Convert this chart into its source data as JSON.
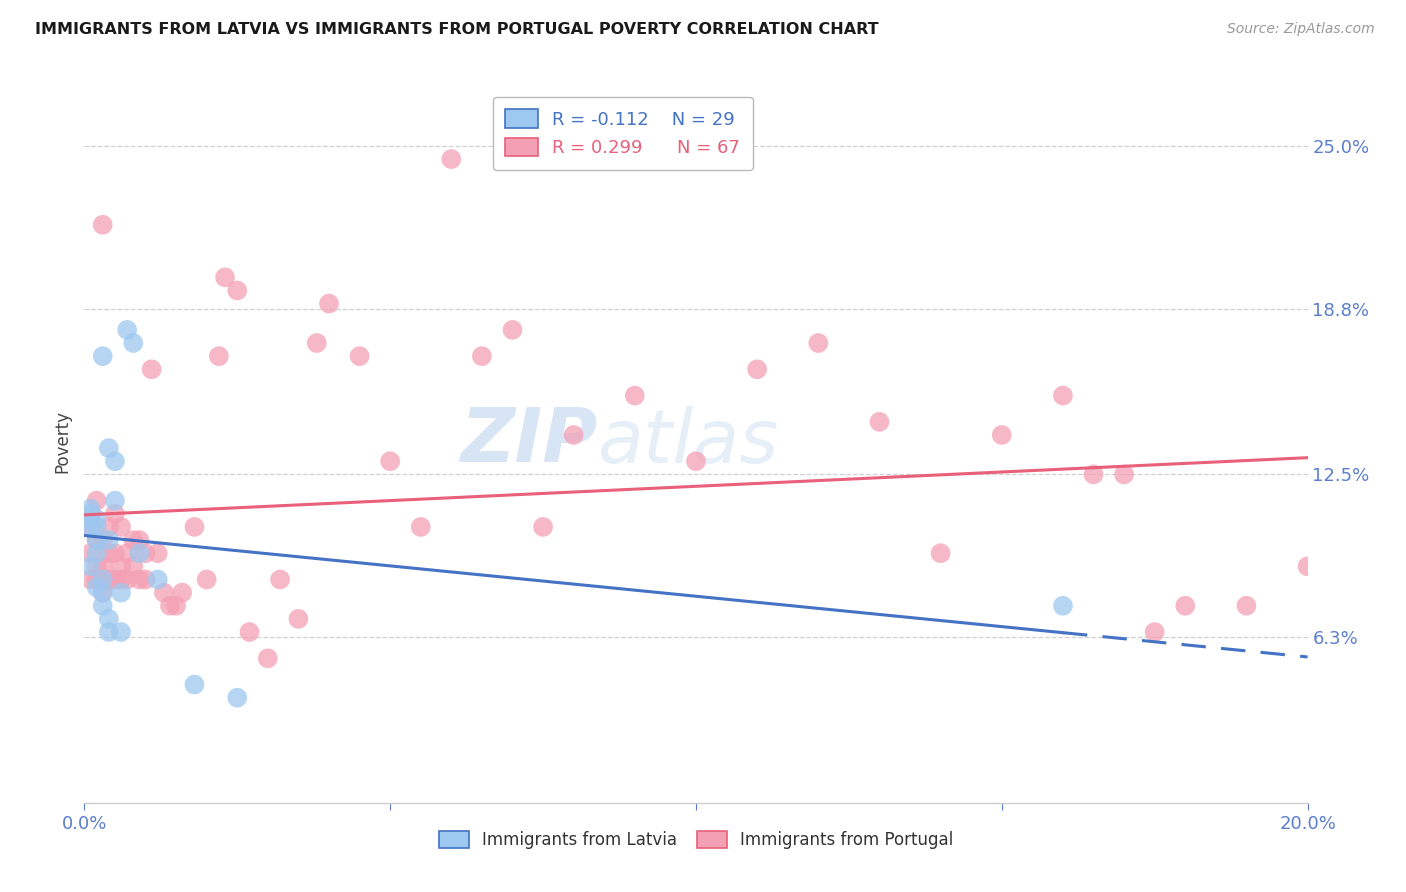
{
  "title": "IMMIGRANTS FROM LATVIA VS IMMIGRANTS FROM PORTUGAL POVERTY CORRELATION CHART",
  "source": "Source: ZipAtlas.com",
  "ylabel": "Poverty",
  "xlim": [
    0.0,
    0.2
  ],
  "ylim": [
    0.0,
    0.275
  ],
  "yticks": [
    0.063,
    0.125,
    0.188,
    0.25
  ],
  "ytick_labels": [
    "6.3%",
    "12.5%",
    "18.8%",
    "25.0%"
  ],
  "color_latvia": "#9DC8F0",
  "color_portugal": "#F4A0B4",
  "color_line_latvia": "#4472C4",
  "color_line_portugal": "#E8607A",
  "color_axis_labels": "#5B7FCC",
  "watermark_zip": "ZIP",
  "watermark_atlas": "atlas",
  "latvia_x": [
    0.001,
    0.001,
    0.001,
    0.001,
    0.001,
    0.002,
    0.002,
    0.002,
    0.002,
    0.002,
    0.003,
    0.003,
    0.003,
    0.003,
    0.004,
    0.004,
    0.004,
    0.004,
    0.005,
    0.005,
    0.006,
    0.006,
    0.007,
    0.008,
    0.009,
    0.012,
    0.018,
    0.025,
    0.16
  ],
  "latvia_y": [
    0.105,
    0.108,
    0.11,
    0.112,
    0.09,
    0.095,
    0.1,
    0.105,
    0.108,
    0.082,
    0.075,
    0.08,
    0.085,
    0.17,
    0.065,
    0.07,
    0.1,
    0.135,
    0.115,
    0.13,
    0.065,
    0.08,
    0.18,
    0.175,
    0.095,
    0.085,
    0.045,
    0.04,
    0.075
  ],
  "portugal_x": [
    0.001,
    0.001,
    0.001,
    0.002,
    0.002,
    0.002,
    0.002,
    0.003,
    0.003,
    0.003,
    0.003,
    0.004,
    0.004,
    0.004,
    0.005,
    0.005,
    0.005,
    0.006,
    0.006,
    0.006,
    0.007,
    0.007,
    0.008,
    0.008,
    0.009,
    0.009,
    0.01,
    0.01,
    0.011,
    0.012,
    0.013,
    0.014,
    0.015,
    0.016,
    0.018,
    0.02,
    0.022,
    0.023,
    0.025,
    0.027,
    0.03,
    0.032,
    0.035,
    0.038,
    0.04,
    0.045,
    0.05,
    0.055,
    0.06,
    0.065,
    0.07,
    0.075,
    0.08,
    0.09,
    0.1,
    0.11,
    0.12,
    0.13,
    0.14,
    0.15,
    0.16,
    0.165,
    0.17,
    0.175,
    0.18,
    0.19,
    0.2
  ],
  "portugal_y": [
    0.085,
    0.095,
    0.105,
    0.085,
    0.09,
    0.1,
    0.115,
    0.08,
    0.09,
    0.1,
    0.22,
    0.085,
    0.095,
    0.105,
    0.085,
    0.095,
    0.11,
    0.085,
    0.09,
    0.105,
    0.085,
    0.095,
    0.09,
    0.1,
    0.085,
    0.1,
    0.085,
    0.095,
    0.165,
    0.095,
    0.08,
    0.075,
    0.075,
    0.08,
    0.105,
    0.085,
    0.17,
    0.2,
    0.195,
    0.065,
    0.055,
    0.085,
    0.07,
    0.175,
    0.19,
    0.17,
    0.13,
    0.105,
    0.245,
    0.17,
    0.18,
    0.105,
    0.14,
    0.155,
    0.13,
    0.165,
    0.175,
    0.145,
    0.095,
    0.14,
    0.155,
    0.125,
    0.125,
    0.065,
    0.075,
    0.075,
    0.09
  ]
}
